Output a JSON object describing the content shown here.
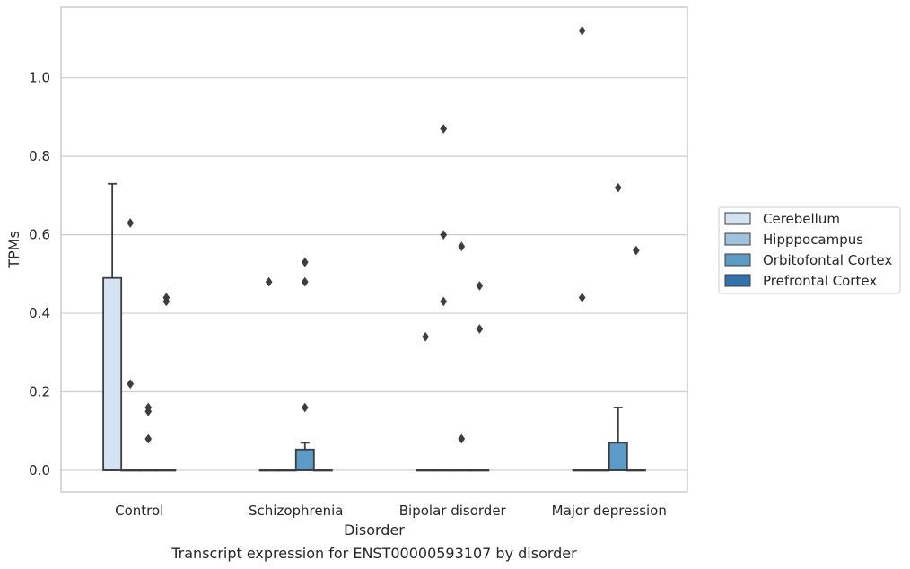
{
  "caption": "Transcript expression for ENST00000593107 by disorder",
  "chart_data": {
    "type": "box",
    "title": "",
    "xlabel": "Disorder",
    "ylabel": "TPMs",
    "ylim": [
      -0.055,
      1.18
    ],
    "yticks": [
      0.0,
      0.2,
      0.4,
      0.6,
      0.8,
      1.0
    ],
    "ytick_labels": [
      "0.0",
      "0.2",
      "0.4",
      "0.6",
      "0.8",
      "1.0"
    ],
    "grid": "horizontal",
    "legend_position": "right",
    "categories": [
      "Control",
      "Schizophrenia",
      "Bipolar disorder",
      "Major depression"
    ],
    "series": [
      {
        "name": "Cerebellum",
        "color": "#d4e3f1",
        "boxes": [
          {
            "q1": 0.0,
            "median": 0.0,
            "q3": 0.49,
            "whisker_low": 0.0,
            "whisker_high": 0.73,
            "outliers": []
          },
          {
            "q1": 0.0,
            "median": 0.0,
            "q3": 0.0,
            "whisker_low": 0.0,
            "whisker_high": 0.0,
            "outliers": [
              0.48
            ]
          },
          {
            "q1": 0.0,
            "median": 0.0,
            "q3": 0.0,
            "whisker_low": 0.0,
            "whisker_high": 0.0,
            "outliers": [
              0.34
            ]
          },
          {
            "q1": 0.0,
            "median": 0.0,
            "q3": 0.0,
            "whisker_low": 0.0,
            "whisker_high": 0.0,
            "outliers": [
              1.12,
              0.44
            ]
          }
        ]
      },
      {
        "name": "Hipppocampus",
        "color": "#9fc3dc",
        "boxes": [
          {
            "q1": 0.0,
            "median": 0.0,
            "q3": 0.0,
            "whisker_low": 0.0,
            "whisker_high": 0.0,
            "outliers": [
              0.63,
              0.22
            ]
          },
          {
            "q1": 0.0,
            "median": 0.0,
            "q3": 0.0,
            "whisker_low": 0.0,
            "whisker_high": 0.0,
            "outliers": []
          },
          {
            "q1": 0.0,
            "median": 0.0,
            "q3": 0.0,
            "whisker_low": 0.0,
            "whisker_high": 0.0,
            "outliers": [
              0.87,
              0.6,
              0.43
            ]
          },
          {
            "q1": 0.0,
            "median": 0.0,
            "q3": 0.0,
            "whisker_low": 0.0,
            "whisker_high": 0.0,
            "outliers": []
          }
        ]
      },
      {
        "name": "Orbitofontal Cortex",
        "color": "#5d9bc7",
        "boxes": [
          {
            "q1": 0.0,
            "median": 0.0,
            "q3": 0.0,
            "whisker_low": 0.0,
            "whisker_high": 0.0,
            "outliers": [
              0.16,
              0.15,
              0.08
            ]
          },
          {
            "q1": 0.0,
            "median": 0.0,
            "q3": 0.053,
            "whisker_low": 0.0,
            "whisker_high": 0.07,
            "outliers": [
              0.53,
              0.48,
              0.16
            ]
          },
          {
            "q1": 0.0,
            "median": 0.0,
            "q3": 0.0,
            "whisker_low": 0.0,
            "whisker_high": 0.0,
            "outliers": [
              0.57,
              0.08
            ]
          },
          {
            "q1": 0.0,
            "median": 0.0,
            "q3": 0.07,
            "whisker_low": 0.0,
            "whisker_high": 0.16,
            "outliers": [
              0.72
            ]
          }
        ]
      },
      {
        "name": "Prefrontal Cortex",
        "color": "#3271a9",
        "boxes": [
          {
            "q1": 0.0,
            "median": 0.0,
            "q3": 0.0,
            "whisker_low": 0.0,
            "whisker_high": 0.0,
            "outliers": [
              0.44,
              0.43
            ]
          },
          {
            "q1": 0.0,
            "median": 0.0,
            "q3": 0.0,
            "whisker_low": 0.0,
            "whisker_high": 0.0,
            "outliers": []
          },
          {
            "q1": 0.0,
            "median": 0.0,
            "q3": 0.0,
            "whisker_low": 0.0,
            "whisker_high": 0.0,
            "outliers": [
              0.47,
              0.36
            ]
          },
          {
            "q1": 0.0,
            "median": 0.0,
            "q3": 0.0,
            "whisker_low": 0.0,
            "whisker_high": 0.0,
            "outliers": [
              0.56
            ]
          }
        ]
      }
    ]
  }
}
